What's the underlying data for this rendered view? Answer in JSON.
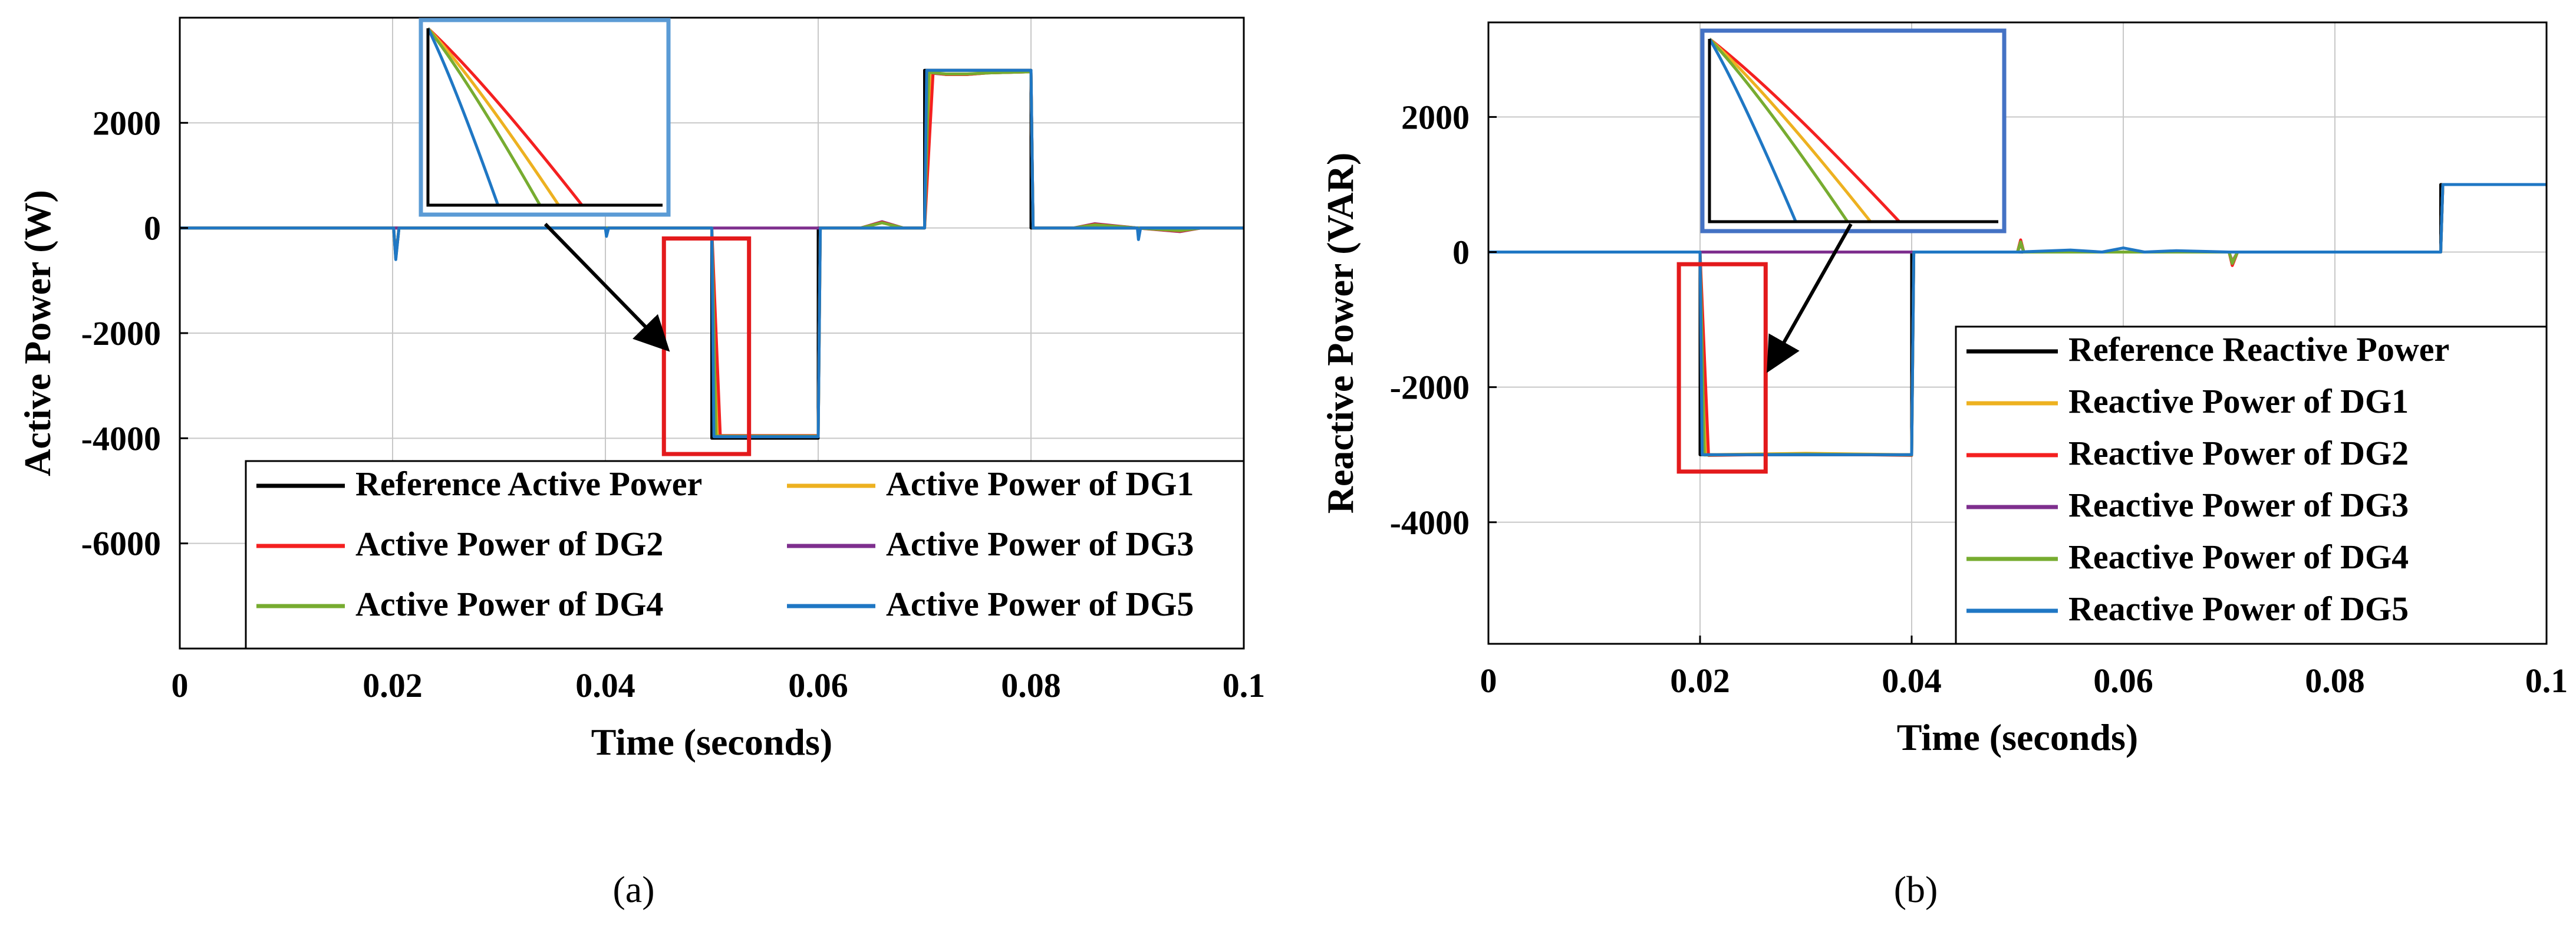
{
  "figure": {
    "panels": [
      "(a)",
      "(b)"
    ]
  },
  "colors": {
    "reference": "#000000",
    "dg1": "#EDB120",
    "dg2": "#F42020",
    "dg3": "#7E2F8E",
    "dg4": "#77AC30",
    "dg5": "#1F77C4",
    "highlight_box": "#E31A1C",
    "inset_border_a": "#5B9BD5",
    "inset_border_b": "#4472C4",
    "grid": "#C8C8C8"
  },
  "chart_data": [
    {
      "type": "line",
      "panel_label": "(a)",
      "xlabel": "Time (seconds)",
      "ylabel": "Active Power (W)",
      "xlim": [
        0,
        0.1
      ],
      "ylim": [
        -8000,
        4000
      ],
      "xticks": [
        0,
        0.02,
        0.04,
        0.06,
        0.08,
        0.1
      ],
      "xtick_labels": [
        "0",
        "0.02",
        "0.04",
        "0.06",
        "0.08",
        "0.1"
      ],
      "yticks": [
        -6000,
        -4000,
        -2000,
        0,
        2000
      ],
      "ytick_labels": [
        "-6000",
        "-4000",
        "-2000",
        "0",
        "2000"
      ],
      "grid": true,
      "legend": {
        "location": "bottom-right",
        "columns": 2
      },
      "series": [
        {
          "name": "Reference Active Power",
          "color_key": "reference",
          "x": [
            0,
            0.05,
            0.05,
            0.06,
            0.06,
            0.07,
            0.07,
            0.08,
            0.08,
            0.1
          ],
          "y": [
            0,
            0,
            -4000,
            -4000,
            0,
            0,
            3000,
            3000,
            0,
            0
          ]
        },
        {
          "name": "Active Power of DG1",
          "color_key": "dg1",
          "x": [
            0,
            0.0201,
            0.0203,
            0.0206,
            0.05,
            0.0506,
            0.06,
            0.0602,
            0.064,
            0.066,
            0.068,
            0.07,
            0.0706,
            0.072,
            0.074,
            0.076,
            0.08,
            0.0802,
            0.084,
            0.086,
            0.09,
            0.094,
            0.096,
            0.1
          ],
          "y": [
            0,
            0,
            -560,
            0,
            0,
            -3950,
            -3950,
            0,
            0,
            100,
            0,
            0,
            2960,
            2920,
            2920,
            2950,
            2970,
            0,
            0,
            60,
            0,
            -60,
            0,
            0
          ]
        },
        {
          "name": "Active Power of DG2",
          "color_key": "dg2",
          "x": [
            0,
            0.0201,
            0.0203,
            0.0206,
            0.05,
            0.0508,
            0.06,
            0.0602,
            0.064,
            0.066,
            0.068,
            0.07,
            0.0708,
            0.072,
            0.074,
            0.076,
            0.08,
            0.0802,
            0.084,
            0.086,
            0.09,
            0.094,
            0.096,
            0.1
          ],
          "y": [
            0,
            0,
            -570,
            0,
            0,
            -3950,
            -3950,
            0,
            0,
            110,
            0,
            0,
            2950,
            2920,
            2920,
            2950,
            2970,
            0,
            0,
            70,
            0,
            -60,
            0,
            0
          ]
        },
        {
          "name": "Active Power of DG3",
          "color_key": "dg3",
          "x": [
            0,
            0.05,
            0.05,
            0.06,
            0.06,
            0.064,
            0.066,
            0.068,
            0.07,
            0.0704,
            0.072,
            0.074,
            0.076,
            0.08,
            0.0802,
            0.084,
            0.086,
            0.09,
            0.094,
            0.096,
            0.1
          ],
          "y": [
            0,
            0,
            0,
            0,
            0,
            0,
            120,
            0,
            0,
            2950,
            2920,
            2920,
            2950,
            2970,
            0,
            0,
            80,
            0,
            -70,
            0,
            0
          ]
        },
        {
          "name": "Active Power of DG4",
          "color_key": "dg4",
          "x": [
            0,
            0.0201,
            0.0203,
            0.0206,
            0.05,
            0.0504,
            0.06,
            0.0602,
            0.064,
            0.066,
            0.068,
            0.07,
            0.0704,
            0.072,
            0.074,
            0.076,
            0.08,
            0.0802,
            0.084,
            0.086,
            0.09,
            0.094,
            0.096,
            0.1
          ],
          "y": [
            0,
            0,
            -580,
            0,
            0,
            -3960,
            -3960,
            0,
            0,
            100,
            0,
            0,
            2960,
            2930,
            2930,
            2950,
            2970,
            0,
            0,
            60,
            0,
            -50,
            0,
            0
          ]
        },
        {
          "name": "Active Power of DG5",
          "color_key": "dg5",
          "x": [
            0,
            0.0201,
            0.0203,
            0.0206,
            0.04,
            0.0401,
            0.0403,
            0.05,
            0.0502,
            0.06,
            0.0602,
            0.07,
            0.0702,
            0.08,
            0.0802,
            0.09,
            0.0901,
            0.0903,
            0.1
          ],
          "y": [
            0,
            0,
            -600,
            0,
            0,
            -160,
            0,
            0,
            -3970,
            -3970,
            0,
            0,
            3000,
            3000,
            0,
            0,
            -220,
            0,
            0
          ]
        }
      ],
      "highlight_box": {
        "x_range": [
          0.0455,
          0.0535
        ],
        "y_range": [
          -4300,
          -200
        ]
      },
      "inset_note": "zoomed view of transient (schematic decay curves)"
    },
    {
      "type": "line",
      "panel_label": "(b)",
      "xlabel": "Time (seconds)",
      "ylabel": "Reactive Power (VAR)",
      "xlim": [
        0,
        0.1
      ],
      "ylim": [
        -5800,
        3400
      ],
      "xticks": [
        0,
        0.02,
        0.04,
        0.06,
        0.08,
        0.1
      ],
      "xtick_labels": [
        "0",
        "0.02",
        "0.04",
        "0.06",
        "0.08",
        "0.1"
      ],
      "yticks": [
        -4000,
        -2000,
        0,
        2000
      ],
      "ytick_labels": [
        "-4000",
        "-2000",
        "0",
        "2000"
      ],
      "grid": true,
      "legend": {
        "location": "right",
        "columns": 1
      },
      "series": [
        {
          "name": "Reference Reactive Power",
          "color_key": "reference",
          "x": [
            0,
            0.02,
            0.02,
            0.04,
            0.04,
            0.09,
            0.09,
            0.1
          ],
          "y": [
            0,
            0,
            -3000,
            -3000,
            0,
            0,
            1000,
            1000
          ]
        },
        {
          "name": "Reactive Power of DG1",
          "color_key": "dg1",
          "x": [
            0,
            0.02,
            0.0206,
            0.03,
            0.04,
            0.0402,
            0.05,
            0.0503,
            0.0506,
            0.07,
            0.0703,
            0.0708,
            0.09,
            0.0902,
            0.1
          ],
          "y": [
            0,
            0,
            -3000,
            -2980,
            -3000,
            0,
            0,
            140,
            0,
            0,
            -160,
            0,
            0,
            1000,
            1000
          ]
        },
        {
          "name": "Reactive Power of DG2",
          "color_key": "dg2",
          "x": [
            0,
            0.02,
            0.0208,
            0.03,
            0.04,
            0.0402,
            0.05,
            0.0503,
            0.0506,
            0.07,
            0.0703,
            0.0708,
            0.09,
            0.0902,
            0.1
          ],
          "y": [
            0,
            0,
            -3010,
            -2990,
            -3010,
            0,
            0,
            180,
            0,
            0,
            -200,
            0,
            0,
            1000,
            1000
          ]
        },
        {
          "name": "Reactive Power of DG3",
          "color_key": "dg3",
          "x": [
            0,
            0.04,
            0.0402,
            0.05,
            0.0503,
            0.0506,
            0.07,
            0.0703,
            0.0708,
            0.09,
            0.0902,
            0.1
          ],
          "y": [
            0,
            0,
            0,
            0,
            120,
            0,
            0,
            -140,
            0,
            0,
            1000,
            1000
          ]
        },
        {
          "name": "Reactive Power of DG4",
          "color_key": "dg4",
          "x": [
            0,
            0.02,
            0.0204,
            0.03,
            0.04,
            0.0402,
            0.05,
            0.0503,
            0.0506,
            0.07,
            0.0703,
            0.0708,
            0.09,
            0.0902,
            0.1
          ],
          "y": [
            0,
            0,
            -3005,
            -2990,
            -3005,
            0,
            0,
            150,
            0,
            0,
            -170,
            0,
            0,
            1000,
            1000
          ]
        },
        {
          "name": "Reactive Power of DG5",
          "color_key": "dg5",
          "x": [
            0,
            0.02,
            0.0202,
            0.04,
            0.0402,
            0.05,
            0.055,
            0.058,
            0.06,
            0.062,
            0.065,
            0.07,
            0.09,
            0.0902,
            0.1
          ],
          "y": [
            0,
            0,
            -3000,
            -3000,
            0,
            0,
            30,
            0,
            60,
            0,
            20,
            0,
            0,
            1000,
            1000
          ]
        }
      ],
      "highlight_box": {
        "x_range": [
          0.018,
          0.0262
        ],
        "y_range": [
          -3250,
          -180
        ]
      },
      "inset_note": "zoomed view of transient (schematic decay curves)"
    }
  ]
}
